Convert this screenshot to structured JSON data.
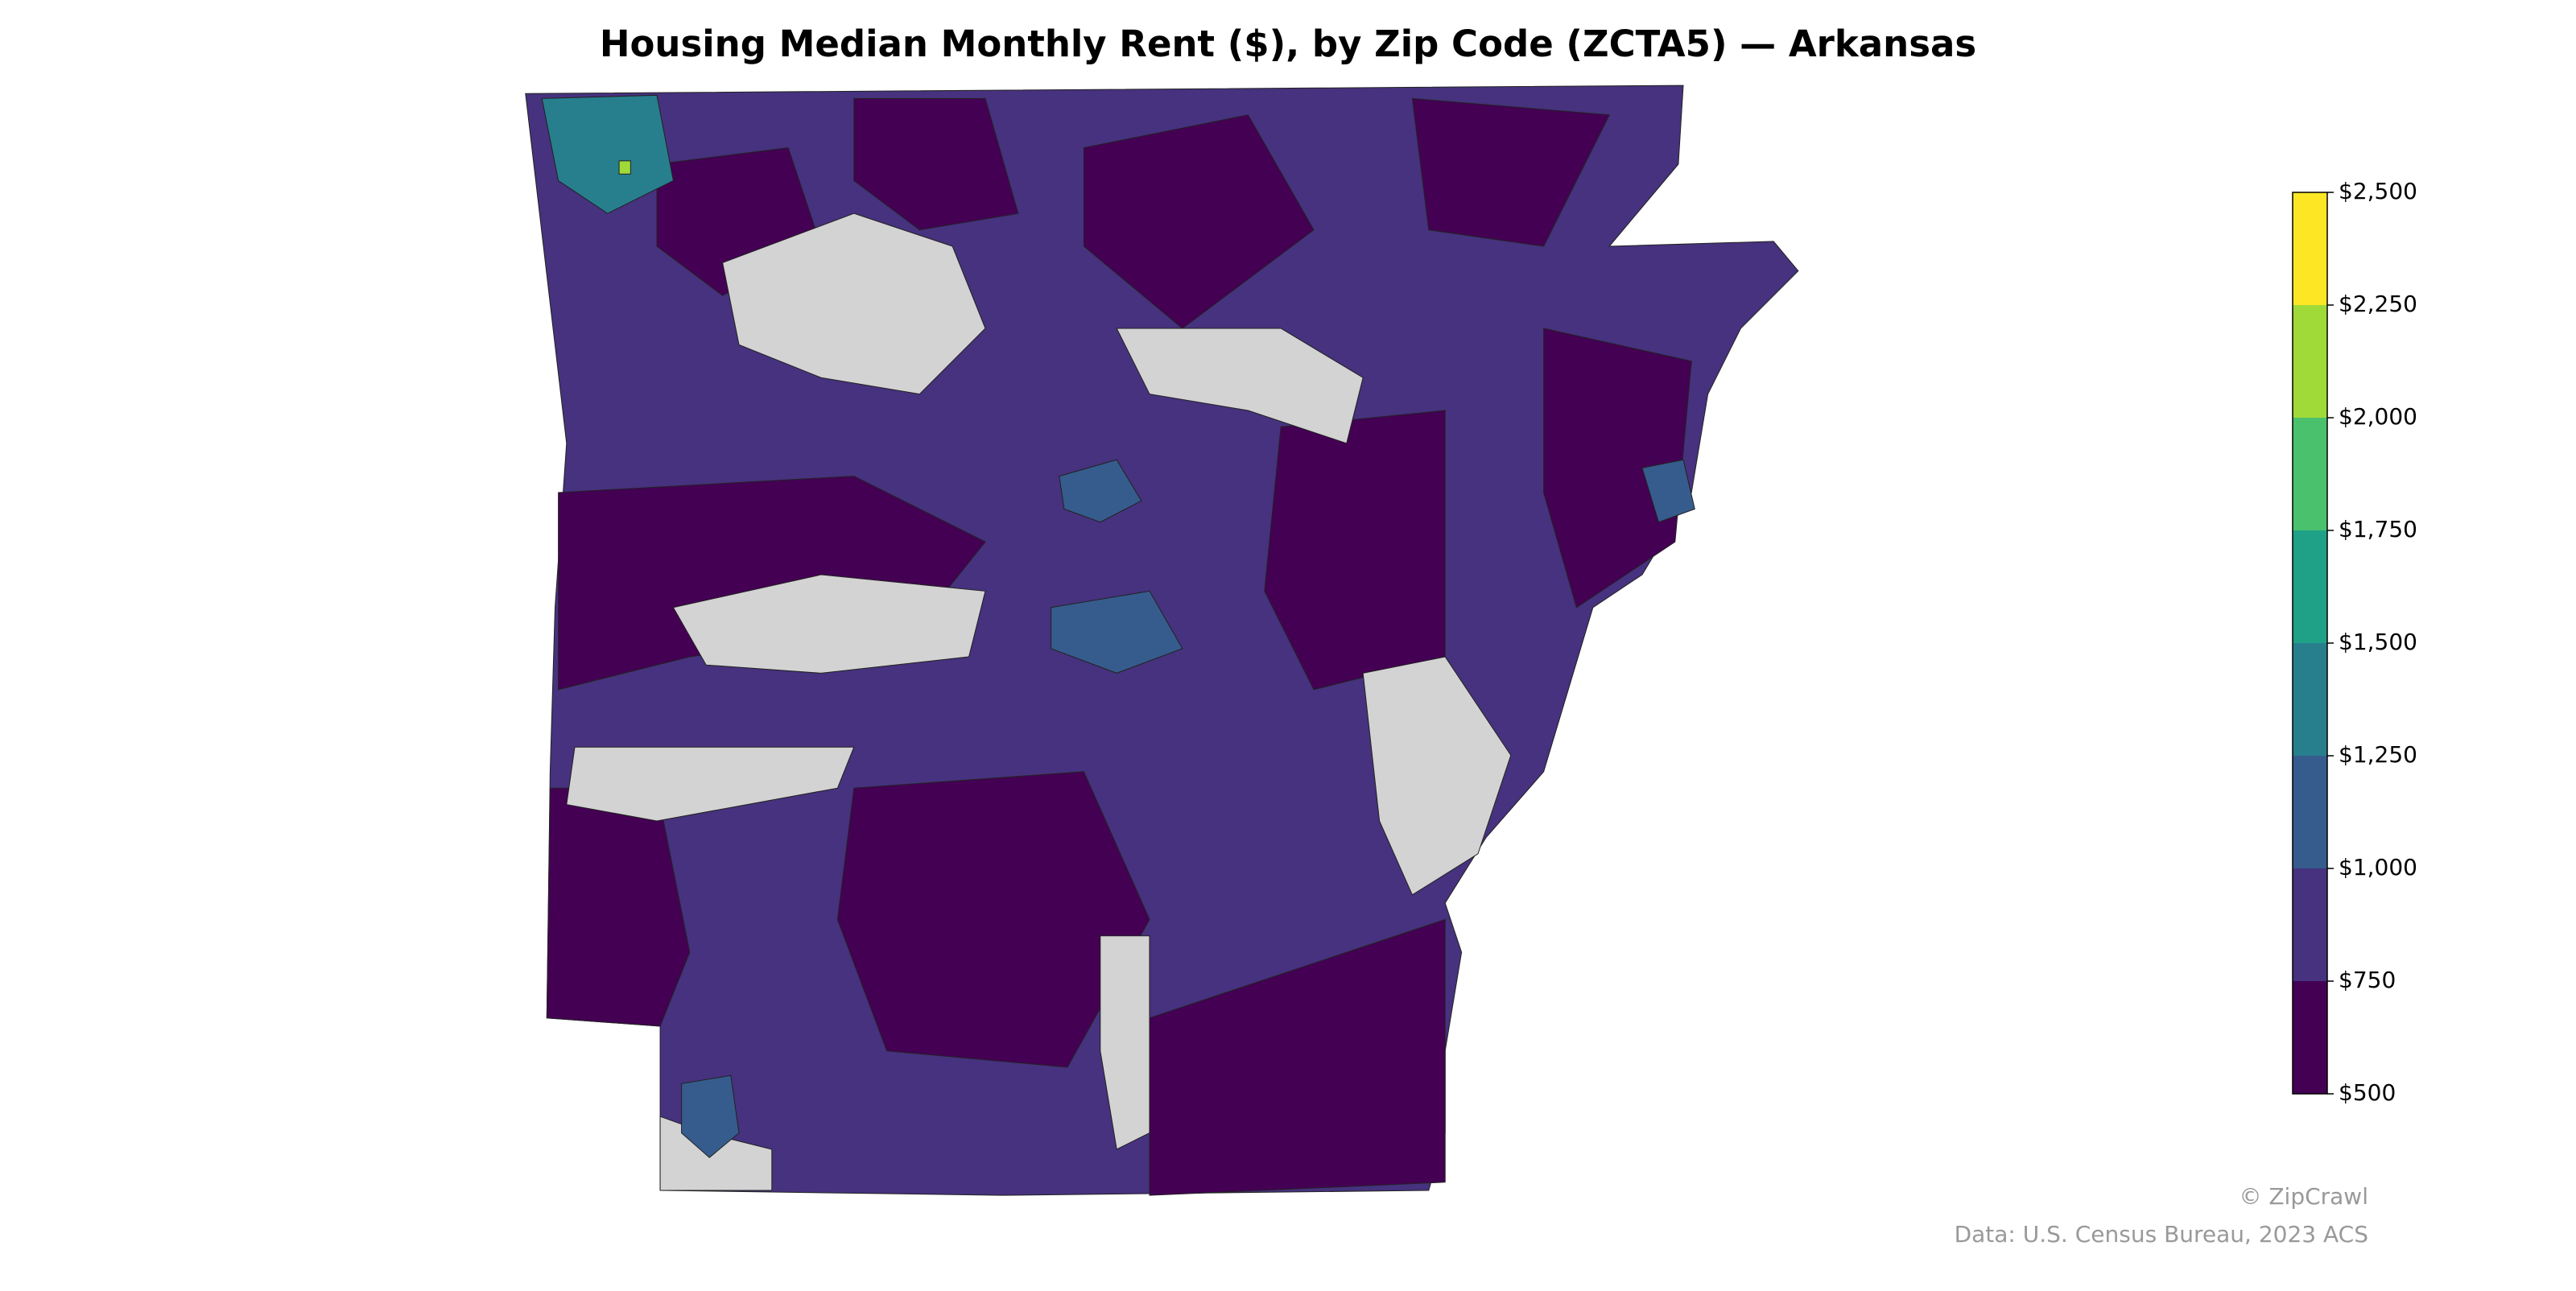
{
  "chart_data": {
    "type": "choropleth",
    "title": "Housing Median Monthly Rent ($), by Zip Code (ZCTA5) — Arkansas",
    "colorbar": {
      "lim": [
        500,
        2500
      ],
      "ticks": [
        {
          "value": 500,
          "label": "$500"
        },
        {
          "value": 750,
          "label": "$750"
        },
        {
          "value": 1000,
          "label": "$1,000"
        },
        {
          "value": 1250,
          "label": "$1,250"
        },
        {
          "value": 1500,
          "label": "$1,500"
        },
        {
          "value": 1750,
          "label": "$1,750"
        },
        {
          "value": 2000,
          "label": "$2,000"
        },
        {
          "value": 2250,
          "label": "$2,250"
        },
        {
          "value": 2500,
          "label": "$2,500"
        }
      ],
      "colors": [
        "#440154",
        "#46327e",
        "#365c8d",
        "#277f8e",
        "#1fa187",
        "#4ac16d",
        "#a0da39",
        "#fde725"
      ]
    },
    "credit": "© ZipCrawl",
    "source": "Data: U.S. Census Bureau, 2023 ACS"
  }
}
